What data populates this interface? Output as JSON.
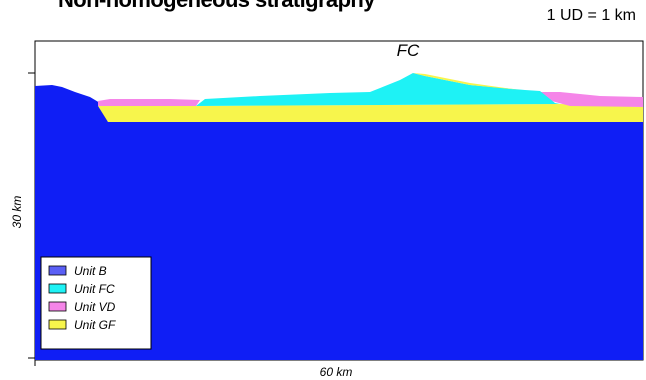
{
  "title": "Non-homogeneous stratigraphy",
  "scale_note": "1 UD = 1 km",
  "section_label": "FC",
  "y_axis_label": "30 km",
  "x_axis_label": "60 km",
  "legend": [
    {
      "label": "Unit B",
      "color": "#0f1ef5"
    },
    {
      "label": "Unit FC",
      "color": "#1ef2f5"
    },
    {
      "label": "Unit VD",
      "color": "#f585e8"
    },
    {
      "label": "Unit GF",
      "color": "#f7f54c"
    }
  ]
}
